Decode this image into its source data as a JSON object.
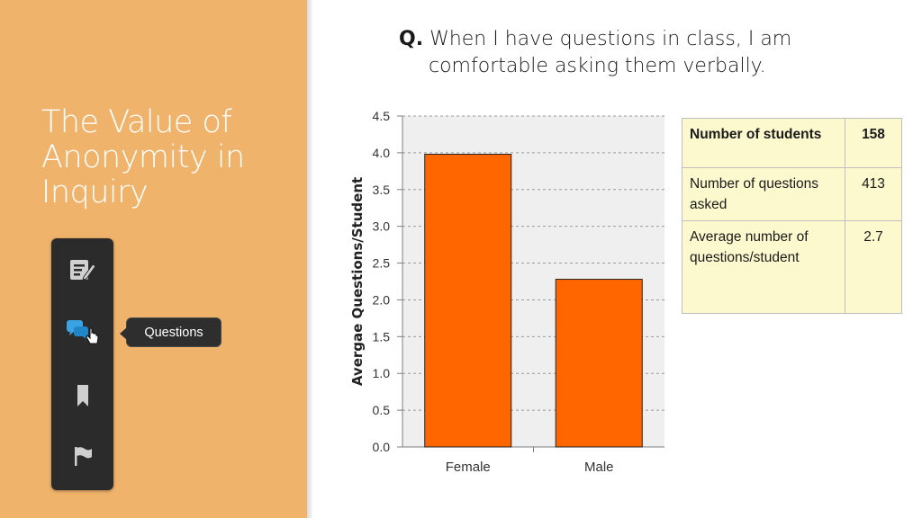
{
  "slide": {
    "title": "The Value of Anonymity in Inquiry"
  },
  "toolbar": {
    "tools": [
      {
        "icon": "notes-icon"
      },
      {
        "icon": "questions-icon",
        "active": true
      },
      {
        "icon": "bookmark-icon"
      },
      {
        "icon": "flag-icon"
      }
    ],
    "tooltip": "Questions",
    "accent": "#3aa3e3"
  },
  "question": {
    "label": "Q.",
    "line1": "When I have questions in class, I am",
    "line2": "comfortable asking them verbally."
  },
  "chart_data": {
    "type": "bar",
    "categories": [
      "Female",
      "Male"
    ],
    "values": [
      3.98,
      2.28
    ],
    "ylabel": "Avergae Questions/Student",
    "xlabel": "",
    "ylim": [
      0,
      4.5
    ],
    "yticks": [
      "0.0",
      "0.5",
      "1.0",
      "1.5",
      "2.0",
      "2.5",
      "3.0",
      "3.5",
      "4.0",
      "4.5"
    ],
    "bar_color": "#ff6600",
    "grid": true
  },
  "stats": {
    "rows": [
      {
        "label": "Number of students",
        "value": "158"
      },
      {
        "label": "Number of questions asked",
        "value": "413"
      },
      {
        "label": "Average number of questions/student",
        "value": "2.7"
      }
    ]
  }
}
